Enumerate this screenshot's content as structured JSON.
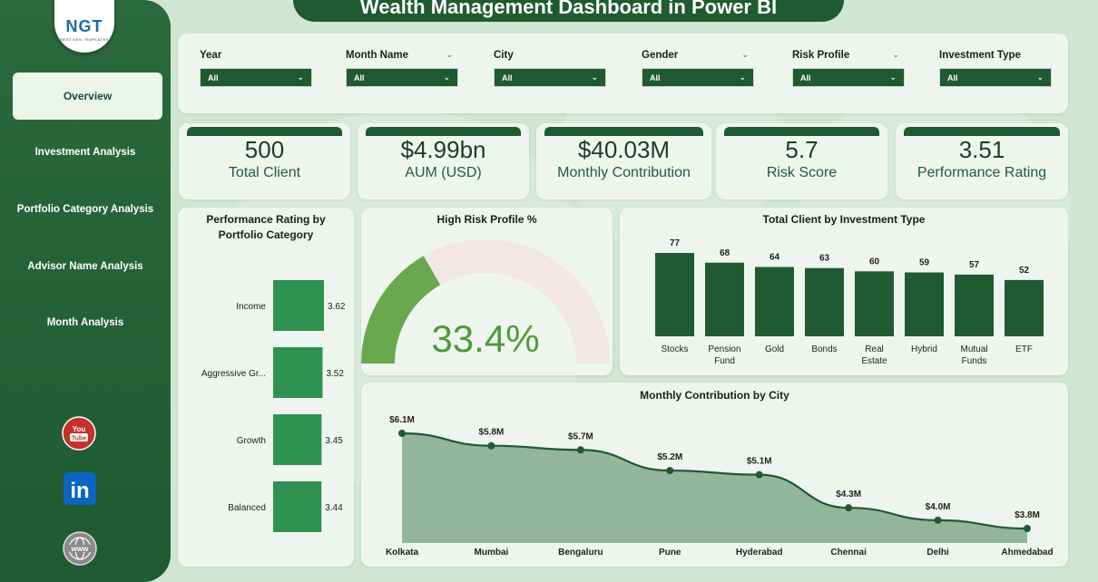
{
  "title": "Wealth Management Dashboard in Power BI",
  "logo": {
    "text": "NGT",
    "subtitle": "NEXT GEN TEMPLATES"
  },
  "nav": {
    "items": [
      {
        "label": "Overview"
      },
      {
        "label": "Investment Analysis"
      },
      {
        "label": "Portfolio Category Analysis"
      },
      {
        "label": "Advisor Name Analysis"
      },
      {
        "label": "Month Analysis"
      }
    ]
  },
  "social": {
    "youtube": "You Tube",
    "linkedin": "in",
    "web": "www"
  },
  "filters": [
    {
      "label": "Year",
      "value": "All"
    },
    {
      "label": "Month Name",
      "value": "All"
    },
    {
      "label": "City",
      "value": "All"
    },
    {
      "label": "Gender",
      "value": "All"
    },
    {
      "label": "Risk Profile",
      "value": "All"
    },
    {
      "label": "Investment Type",
      "value": "All"
    }
  ],
  "kpis": [
    {
      "value": "500",
      "label": "Total Client"
    },
    {
      "value": "$4.99bn",
      "label": "AUM (USD)"
    },
    {
      "value": "$40.03M",
      "label": "Monthly Contribution"
    },
    {
      "value": "5.7",
      "label": "Risk Score"
    },
    {
      "value": "3.51",
      "label": "Performance Rating"
    }
  ],
  "colors": {
    "dark_green": "#1f5a30",
    "bar_green": "#2e9150",
    "gauge_green": "#6aa84f",
    "area_fill": "#93b59d",
    "line": "#1f5a30"
  },
  "chart_data": [
    {
      "type": "bar",
      "orientation": "horizontal",
      "title": "Performance Rating by Portfolio Category",
      "categories": [
        "Income",
        "Aggressive Gr...",
        "Growth",
        "Balanced"
      ],
      "values": [
        3.62,
        3.52,
        3.45,
        3.44
      ]
    },
    {
      "type": "gauge",
      "title": "High Risk Profile %",
      "value": 33.4,
      "value_label": "33.4%"
    },
    {
      "type": "bar",
      "title": "Total Client by Investment Type",
      "categories": [
        "Stocks",
        "Pension Fund",
        "Gold",
        "Bonds",
        "Real Estate",
        "Hybrid",
        "Mutual Funds",
        "ETF"
      ],
      "values": [
        77,
        68,
        64,
        63,
        60,
        59,
        57,
        52
      ]
    },
    {
      "type": "area",
      "title": "Monthly Contribution by City",
      "categories": [
        "Kolkata",
        "Mumbai",
        "Bengaluru",
        "Pune",
        "Hyderabad",
        "Chennai",
        "Delhi",
        "Ahmedabad"
      ],
      "values": [
        6.1,
        5.8,
        5.7,
        5.2,
        5.1,
        4.3,
        4.0,
        3.8
      ],
      "labels": [
        "$6.1M",
        "$5.8M",
        "$5.7M",
        "$5.2M",
        "$5.1M",
        "$4.3M",
        "$4.0M",
        "$3.8M"
      ]
    }
  ]
}
